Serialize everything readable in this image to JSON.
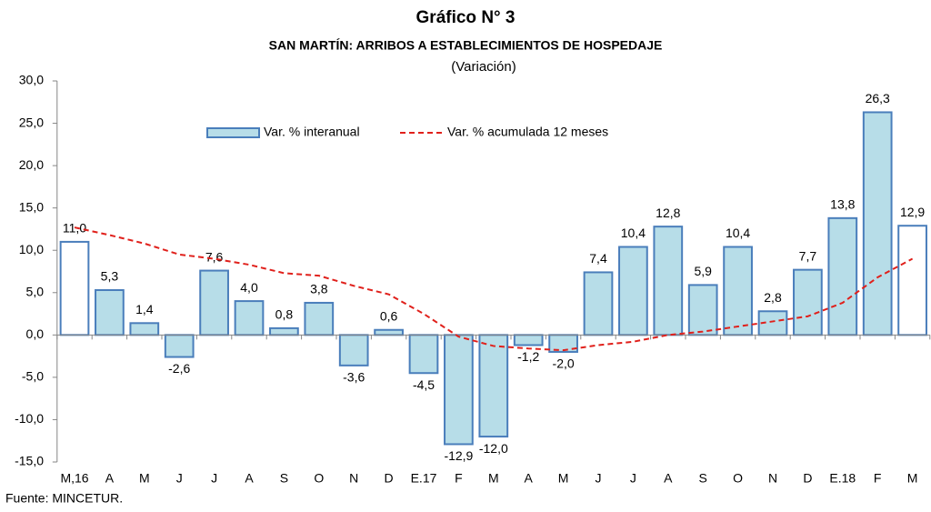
{
  "chart_data": {
    "type": "bar",
    "title": "Gráfico N° 3",
    "subtitle": "SAN MARTÍN: ARRIBOS A ESTABLECIMIENTOS DE HOSPEDAJE",
    "y_label": "(Variación)",
    "footnote": "Fuente: MINCETUR.",
    "categories": [
      "M,16",
      "A",
      "M",
      "J",
      "J",
      "A",
      "S",
      "O",
      "N",
      "D",
      "E.17",
      "F",
      "M",
      "A",
      "M",
      "J",
      "J",
      "A",
      "S",
      "O",
      "N",
      "D",
      "E.18",
      "F",
      "M"
    ],
    "ylim": [
      -15,
      30
    ],
    "yticks": [
      {
        "value": -15,
        "label": "-15,0"
      },
      {
        "value": -10,
        "label": "-10,0"
      },
      {
        "value": -5,
        "label": "-5,0"
      },
      {
        "value": 0,
        "label": "0,0"
      },
      {
        "value": 5,
        "label": "5,0"
      },
      {
        "value": 10,
        "label": "10,0"
      },
      {
        "value": 15,
        "label": "15,0"
      },
      {
        "value": 20,
        "label": "20,0"
      },
      {
        "value": 25,
        "label": "25,0"
      },
      {
        "value": 30,
        "label": "30,0"
      }
    ],
    "legend": "top",
    "series": [
      {
        "name": "Var. % interanual",
        "type": "bar",
        "color": "#b7dde8",
        "edge_color": "#4a7ebb",
        "colors": [
          "#ffffff",
          "#b7dde8",
          "#b7dde8",
          "#b7dde8",
          "#b7dde8",
          "#b7dde8",
          "#b7dde8",
          "#b7dde8",
          "#b7dde8",
          "#b7dde8",
          "#b7dde8",
          "#b7dde8",
          "#b7dde8",
          "#b7dde8",
          "#b7dde8",
          "#b7dde8",
          "#b7dde8",
          "#b7dde8",
          "#b7dde8",
          "#b7dde8",
          "#b7dde8",
          "#b7dde8",
          "#b7dde8",
          "#b7dde8",
          "#ffffff"
        ],
        "values": [
          11.0,
          5.3,
          1.4,
          -2.6,
          7.6,
          4.0,
          0.8,
          3.8,
          -3.6,
          0.6,
          -4.5,
          -12.9,
          -12.0,
          -1.2,
          -2.0,
          7.4,
          10.4,
          12.8,
          5.9,
          10.4,
          2.8,
          7.7,
          13.8,
          26.3,
          12.9
        ],
        "value_labels": [
          "11,0",
          "5,3",
          "1,4",
          "-2,6",
          "7,6",
          "4,0",
          "0,8",
          "3,8",
          "-3,6",
          "0,6",
          "-4,5",
          "-12,9",
          "-12,0",
          "-1,2",
          "-2,0",
          "7,4",
          "10,4",
          "12,8",
          "5,9",
          "10,4",
          "2,8",
          "7,7",
          "13,8",
          "26,3",
          "12,9"
        ]
      },
      {
        "name": "Var. % acumulada 12 meses",
        "type": "line",
        "color": "#e0201b",
        "dashed": true,
        "values": [
          12.7,
          11.8,
          10.8,
          9.5,
          9.0,
          8.3,
          7.3,
          7.0,
          5.8,
          4.8,
          2.5,
          -0.2,
          -1.3,
          -1.6,
          -1.8,
          -1.2,
          -0.8,
          0.0,
          0.4,
          1.0,
          1.6,
          2.2,
          3.8,
          6.8,
          9.0
        ]
      }
    ]
  }
}
